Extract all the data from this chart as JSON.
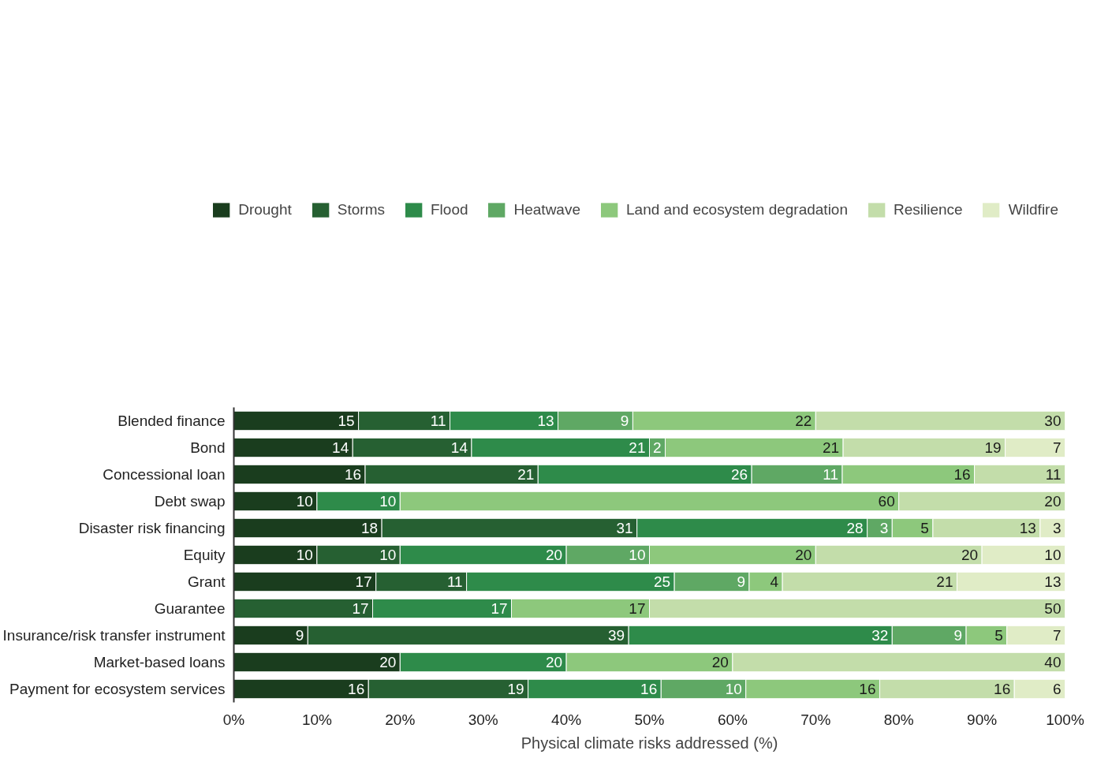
{
  "chart_data": {
    "type": "bar",
    "orientation": "horizontal",
    "stacked": true,
    "xlabel": "Physical climate risks addressed (%)",
    "categories": [
      "Blended finance",
      "Bond",
      "Concessional loan",
      "Debt swap",
      "Disaster risk financing",
      "Equity",
      "Grant",
      "Guarantee",
      "Insurance/risk transfer instrument",
      "Market-based loans",
      "Payment for ecosystem services"
    ],
    "xlim": [
      0,
      100
    ],
    "xticks": [
      {
        "value": 0,
        "label": "0%"
      },
      {
        "value": 10,
        "label": "10%"
      },
      {
        "value": 20,
        "label": "20%"
      },
      {
        "value": 30,
        "label": "30%"
      },
      {
        "value": 40,
        "label": "40%"
      },
      {
        "value": 50,
        "label": "50%"
      },
      {
        "value": 60,
        "label": "60%"
      },
      {
        "value": 70,
        "label": "70%"
      },
      {
        "value": 80,
        "label": "80%"
      },
      {
        "value": 90,
        "label": "90%"
      },
      {
        "value": 100,
        "label": "100%"
      }
    ],
    "grid": false,
    "legend": "top",
    "series": [
      {
        "name": "Drought",
        "color": "#1a3d1e",
        "values": [
          15,
          14.3,
          15.8,
          10,
          17.8,
          10,
          17.1,
          null,
          8.9,
          20,
          16.2
        ],
        "value_labels": [
          "15",
          "14",
          "16",
          "10",
          "18",
          "10",
          "17",
          null,
          "9",
          "20",
          "16"
        ]
      },
      {
        "name": "Storms",
        "color": "#266032",
        "values": [
          11,
          14.3,
          20.8,
          null,
          30.7,
          10,
          10.9,
          16.7,
          38.6,
          null,
          19.2
        ],
        "value_labels": [
          "11",
          "14",
          "21",
          null,
          "31",
          "10",
          "11",
          "17",
          "39",
          null,
          "19"
        ]
      },
      {
        "name": "Flood",
        "color": "#2e8b4a",
        "values": [
          13,
          21.4,
          25.7,
          10,
          27.7,
          20,
          25,
          16.7,
          31.7,
          20,
          16.0
        ],
        "value_labels": [
          "13",
          "21",
          "26",
          "10",
          "28",
          "20",
          "25",
          "17",
          "32",
          "20",
          "16"
        ]
      },
      {
        "name": "Heatwave",
        "color": "#5fa864",
        "values": [
          9,
          1.9,
          10.9,
          null,
          3.0,
          10,
          9,
          null,
          8.9,
          null,
          10.2
        ],
        "value_labels": [
          "9",
          "2",
          "11",
          null,
          "3",
          "10",
          "9",
          null,
          "9",
          null,
          "10"
        ]
      },
      {
        "name": "Land and ecosystem degradation",
        "color": "#8dc87c",
        "values": [
          22,
          21.4,
          15.9,
          60,
          4.9,
          20,
          4,
          16.6,
          4.9,
          20,
          16.1
        ],
        "value_labels": [
          "22",
          "21",
          "16",
          "60",
          "5",
          "20",
          "4",
          "17",
          "5",
          "20",
          "16"
        ]
      },
      {
        "name": "Resilience",
        "color": "#c3ddaa",
        "values": [
          30,
          19.5,
          10.9,
          20,
          12.9,
          20,
          21,
          50,
          null,
          40,
          16.2
        ],
        "value_labels": [
          "30",
          "19",
          "11",
          "20",
          "13",
          "20",
          "21",
          "50",
          null,
          "40",
          "16"
        ]
      },
      {
        "name": "Wildfire",
        "color": "#e0ecc6",
        "values": [
          null,
          7.2,
          null,
          null,
          3.0,
          10,
          13,
          null,
          7.0,
          null,
          6.1
        ],
        "value_labels": [
          null,
          "7",
          null,
          null,
          "3",
          "10",
          "13",
          null,
          "7",
          null,
          "6"
        ]
      }
    ]
  }
}
